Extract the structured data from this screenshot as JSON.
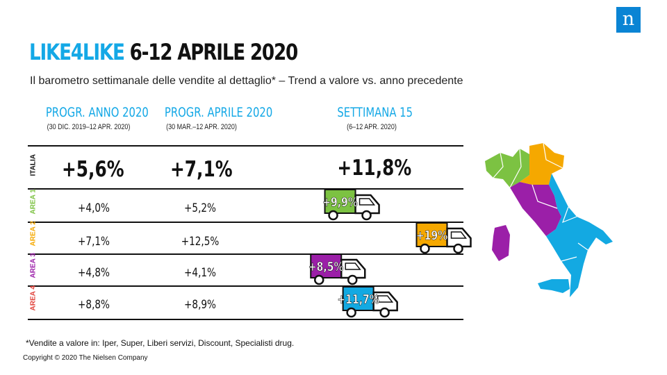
{
  "brand": {
    "logo_letter": "n",
    "accent": "#0a84d4"
  },
  "header": {
    "title_brand": "LIKE4LIKE",
    "title_rest": "6-12 APRILE 2020",
    "subtitle": "Il barometro settimanale delle vendite al dettaglio* – Trend a valore vs. anno precedente"
  },
  "columns": [
    {
      "heading": "PROGR. ANNO 2020",
      "sub": "(30 DIC. 2019–12 APR. 2020)"
    },
    {
      "heading": "PROGR. APRILE 2020",
      "sub": "(30 MAR.–12 APR. 2020)"
    },
    {
      "heading": "SETTIMANA 15",
      "sub": "(6–12 APR. 2020)"
    }
  ],
  "rows": [
    {
      "label": "ITALIA",
      "label_color": "#111111",
      "anno": "+5,6%",
      "aprile": "+7,1%",
      "settimana": "+11,8%"
    },
    {
      "label": "AREA 1",
      "label_color": "#7cc242",
      "anno": "+4,0%",
      "aprile": "+5,2%",
      "settimana": "+9,9%"
    },
    {
      "label": "AREA 2",
      "label_color": "#f5a800",
      "anno": "+7,1%",
      "aprile": "+12,5%",
      "settimana": "+19%"
    },
    {
      "label": "AREA 3",
      "label_color": "#9b1fa8",
      "anno": "+4,8%",
      "aprile": "+4,1%",
      "settimana": "+8,5%"
    },
    {
      "label": "AREA 4",
      "label_color": "#e0413a",
      "anno": "+8,8%",
      "aprile": "+8,9%",
      "settimana": "+11,7%"
    }
  ],
  "chart_data": {
    "type": "bar",
    "categories": [
      "AREA 1",
      "AREA 2",
      "AREA 3",
      "AREA 4"
    ],
    "values": [
      9.9,
      19,
      8.5,
      11.7
    ],
    "value_labels": [
      "+9,9%",
      "+19%",
      "+8,5%",
      "+11,7%"
    ],
    "colors": [
      "#7cc242",
      "#f5a800",
      "#9b1fa8",
      "#13a9e2"
    ],
    "unit": "%"
  },
  "map_regions": [
    {
      "area": "AREA 1",
      "color": "#7cc242"
    },
    {
      "area": "AREA 2",
      "color": "#f5a800"
    },
    {
      "area": "AREA 3",
      "color": "#9b1fa8"
    },
    {
      "area": "AREA 4",
      "color": "#13a9e2"
    }
  ],
  "footnote": "*Vendite a valore in: Iper, Super, Liberi servizi, Discount, Specialisti drug.",
  "copyright": "Copyright © 2020 The Nielsen Company"
}
